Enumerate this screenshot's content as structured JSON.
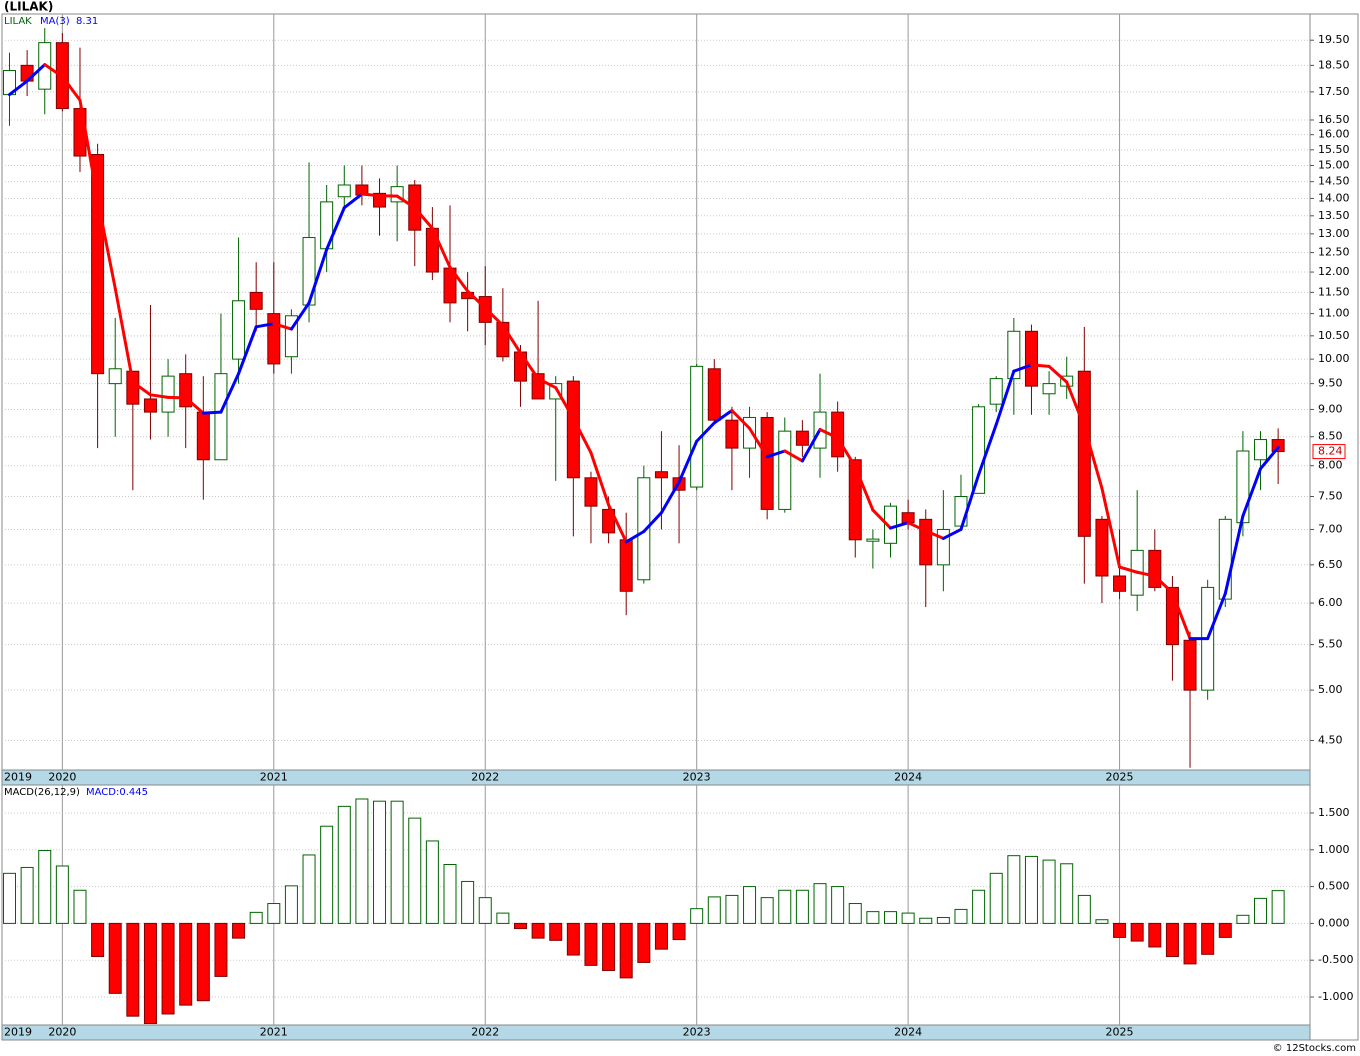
{
  "footer": "© 12Stocks.com",
  "chart_data": [
    {
      "type": "candlestick",
      "title": "(LILAK)",
      "name": "LILAK",
      "categories": [
        "2019",
        null,
        null,
        "2020",
        null,
        null,
        null,
        null,
        null,
        null,
        null,
        null,
        null,
        null,
        null,
        "2021",
        null,
        null,
        null,
        null,
        null,
        null,
        null,
        null,
        null,
        null,
        null,
        "2022",
        null,
        null,
        null,
        null,
        null,
        null,
        null,
        null,
        null,
        null,
        null,
        "2023",
        null,
        null,
        null,
        null,
        null,
        null,
        null,
        null,
        null,
        null,
        null,
        "2024",
        null,
        null,
        null,
        null,
        null,
        null,
        null,
        null,
        null,
        null,
        null,
        "2025",
        null,
        null,
        null,
        null,
        null,
        null,
        null,
        null,
        null
      ],
      "open": [
        17.4,
        18.5,
        17.6,
        19.4,
        16.9,
        15.35,
        9.5,
        9.75,
        9.2,
        8.95,
        9.7,
        8.95,
        8.1,
        10.0,
        11.5,
        11.0,
        10.05,
        11.2,
        12.6,
        14.05,
        14.4,
        14.15,
        13.9,
        14.4,
        13.15,
        12.1,
        11.5,
        11.4,
        10.8,
        10.15,
        9.7,
        9.2,
        9.55,
        7.8,
        7.3,
        6.85,
        6.3,
        7.9,
        7.8,
        7.65,
        9.8,
        8.8,
        8.3,
        8.85,
        7.3,
        8.6,
        8.3,
        8.95,
        8.1,
        6.83,
        6.8,
        7.25,
        7.15,
        6.5,
        7.05,
        7.55,
        9.1,
        9.6,
        10.6,
        9.3,
        9.45,
        9.75,
        7.15,
        6.35,
        6.1,
        6.7,
        6.2,
        5.55,
        5.0,
        6.05,
        7.1,
        8.1,
        8.45
      ],
      "high": [
        19.0,
        19.1,
        20.0,
        19.8,
        19.2,
        15.7,
        10.9,
        9.75,
        11.2,
        10.0,
        10.1,
        9.65,
        11.0,
        12.9,
        12.25,
        12.25,
        11.1,
        15.1,
        14.4,
        15.0,
        15.0,
        14.6,
        15.0,
        14.55,
        13.75,
        13.8,
        12.0,
        12.15,
        11.6,
        10.3,
        11.3,
        9.65,
        9.65,
        7.9,
        7.5,
        7.25,
        8.0,
        8.6,
        8.35,
        9.9,
        10.0,
        9.05,
        9.05,
        8.95,
        8.85,
        8.8,
        9.7,
        9.15,
        8.15,
        7.0,
        7.4,
        7.45,
        7.3,
        7.6,
        7.85,
        9.1,
        9.65,
        10.9,
        10.75,
        9.75,
        10.05,
        10.7,
        7.2,
        7.0,
        7.6,
        7.0,
        6.35,
        5.65,
        6.3,
        7.2,
        8.6,
        8.6,
        8.65
      ],
      "low": [
        16.3,
        17.35,
        16.7,
        16.8,
        14.8,
        8.3,
        8.5,
        7.6,
        8.45,
        8.5,
        8.3,
        7.45,
        8.1,
        9.5,
        10.6,
        9.7,
        9.7,
        10.8,
        12.0,
        13.75,
        13.8,
        12.95,
        12.8,
        12.15,
        11.8,
        10.8,
        10.6,
        10.3,
        9.95,
        9.05,
        9.2,
        7.75,
        6.9,
        6.8,
        6.8,
        5.85,
        6.25,
        7.0,
        6.8,
        7.6,
        8.75,
        7.6,
        7.8,
        7.15,
        7.25,
        8.15,
        7.8,
        7.9,
        6.6,
        6.45,
        6.6,
        7.0,
        5.95,
        6.15,
        7.0,
        7.55,
        8.95,
        8.9,
        8.9,
        8.9,
        9.2,
        6.25,
        6.0,
        6.05,
        5.9,
        6.15,
        5.1,
        4.25,
        4.9,
        5.95,
        6.9,
        7.6,
        7.7
      ],
      "close": [
        18.3,
        17.9,
        19.4,
        16.9,
        15.3,
        9.7,
        9.8,
        9.1,
        8.95,
        9.65,
        9.05,
        8.1,
        9.7,
        11.3,
        11.1,
        9.9,
        10.95,
        12.9,
        13.9,
        14.4,
        14.1,
        13.75,
        14.35,
        13.1,
        12.0,
        11.25,
        11.35,
        10.8,
        10.05,
        9.55,
        9.2,
        9.5,
        7.8,
        7.35,
        6.95,
        6.15,
        7.8,
        7.8,
        7.6,
        9.85,
        8.8,
        8.3,
        8.85,
        7.3,
        8.6,
        8.35,
        8.95,
        8.15,
        6.85,
        6.86,
        7.35,
        7.1,
        6.5,
        7.0,
        7.5,
        9.05,
        9.6,
        10.6,
        9.45,
        9.5,
        9.65,
        6.9,
        6.35,
        6.15,
        6.7,
        6.2,
        5.5,
        5.0,
        6.2,
        7.15,
        8.25,
        8.45,
        8.24
      ],
      "last_value_label": "8.24",
      "up_color": "#006400",
      "down_color": "#ff0000",
      "down_edge_color": "#800000",
      "overlay": {
        "name": "MA(3)",
        "value_label": "8.31",
        "up_color": "#0000ff",
        "down_color": "#ff0000",
        "values": [
          17.4,
          17.9,
          18.53,
          18.07,
          17.2,
          13.97,
          11.6,
          9.53,
          9.28,
          9.23,
          9.22,
          8.93,
          8.95,
          9.7,
          10.7,
          10.77,
          10.65,
          11.25,
          12.58,
          13.73,
          14.13,
          14.08,
          14.07,
          13.73,
          13.15,
          12.12,
          11.53,
          11.13,
          10.73,
          10.13,
          9.6,
          9.42,
          8.83,
          8.22,
          7.37,
          6.82,
          6.97,
          7.25,
          7.73,
          8.42,
          8.75,
          8.98,
          8.65,
          8.15,
          8.25,
          8.08,
          8.63,
          8.48,
          7.98,
          7.29,
          7.02,
          7.1,
          6.98,
          6.87,
          7.0,
          7.85,
          8.72,
          9.75,
          9.88,
          9.85,
          9.53,
          8.68,
          7.63,
          6.47,
          6.4,
          6.35,
          6.13,
          5.57,
          5.57,
          6.12,
          7.2,
          7.95,
          8.31
        ]
      },
      "log_scale": true,
      "grid": true,
      "ylim": [
        4.23,
        20.6
      ],
      "yticks": [
        {
          "value": 4.5,
          "label": "4.50"
        },
        {
          "value": 5,
          "label": "5.00"
        },
        {
          "value": 5.5,
          "label": "5.50"
        },
        {
          "value": 6,
          "label": "6.00"
        },
        {
          "value": 6.5,
          "label": "6.50"
        },
        {
          "value": 7,
          "label": "7.00"
        },
        {
          "value": 7.5,
          "label": "7.50"
        },
        {
          "value": 8,
          "label": "8.00"
        },
        {
          "value": 8.5,
          "label": "8.50"
        },
        {
          "value": 9,
          "label": "9.00"
        },
        {
          "value": 9.5,
          "label": "9.50"
        },
        {
          "value": 10,
          "label": "10.00"
        },
        {
          "value": 10.5,
          "label": "10.50"
        },
        {
          "value": 11,
          "label": "11.00"
        },
        {
          "value": 11.5,
          "label": "11.50"
        },
        {
          "value": 12,
          "label": "12.00"
        },
        {
          "value": 12.5,
          "label": "12.50"
        },
        {
          "value": 13,
          "label": "13.00"
        },
        {
          "value": 13.5,
          "label": "13.50"
        },
        {
          "value": 14,
          "label": "14.00"
        },
        {
          "value": 14.5,
          "label": "14.50"
        },
        {
          "value": 15,
          "label": "15.00"
        },
        {
          "value": 15.5,
          "label": "15.50"
        },
        {
          "value": 16,
          "label": "16.00"
        },
        {
          "value": 16.5,
          "label": "16.50"
        },
        {
          "value": 17.5,
          "label": "17.50"
        },
        {
          "value": 18.5,
          "label": "18.50"
        },
        {
          "value": 19.5,
          "label": "19.50"
        }
      ]
    },
    {
      "type": "bar",
      "title": "MACD(26,12,9)",
      "value_label": "MACD:0.445",
      "categories": [
        "2019",
        null,
        null,
        "2020",
        null,
        null,
        null,
        null,
        null,
        null,
        null,
        null,
        null,
        null,
        null,
        "2021",
        null,
        null,
        null,
        null,
        null,
        null,
        null,
        null,
        null,
        null,
        null,
        "2022",
        null,
        null,
        null,
        null,
        null,
        null,
        null,
        null,
        null,
        null,
        null,
        "2023",
        null,
        null,
        null,
        null,
        null,
        null,
        null,
        null,
        null,
        null,
        null,
        "2024",
        null,
        null,
        null,
        null,
        null,
        null,
        null,
        null,
        null,
        null,
        null,
        "2025",
        null,
        null,
        null,
        null,
        null,
        null,
        null,
        null,
        null
      ],
      "values": [
        0.68,
        0.76,
        0.99,
        0.78,
        0.45,
        -0.45,
        -0.95,
        -1.26,
        -1.36,
        -1.23,
        -1.11,
        -1.05,
        -0.72,
        -0.2,
        0.15,
        0.27,
        0.51,
        0.93,
        1.32,
        1.59,
        1.69,
        1.66,
        1.66,
        1.43,
        1.12,
        0.8,
        0.57,
        0.35,
        0.14,
        -0.07,
        -0.2,
        -0.23,
        -0.43,
        -0.57,
        -0.64,
        -0.74,
        -0.53,
        -0.35,
        -0.22,
        0.2,
        0.36,
        0.38,
        0.5,
        0.35,
        0.45,
        0.45,
        0.54,
        0.5,
        0.27,
        0.16,
        0.16,
        0.14,
        0.07,
        0.08,
        0.19,
        0.45,
        0.68,
        0.92,
        0.91,
        0.86,
        0.81,
        0.38,
        0.05,
        -0.19,
        -0.24,
        -0.32,
        -0.45,
        -0.55,
        -0.42,
        -0.19,
        0.11,
        0.34,
        0.445
      ],
      "up_color": "#006400",
      "down_color": "#ff0000",
      "down_edge_color": "#800000",
      "ylim": [
        -1.38,
        1.88
      ],
      "yticks": [
        {
          "value": -1,
          "label": "-1.000"
        },
        {
          "value": -0.5,
          "label": "-0.500"
        },
        {
          "value": 0,
          "label": "0.000"
        },
        {
          "value": 0.5,
          "label": "0.500"
        },
        {
          "value": 1,
          "label": "1.000"
        },
        {
          "value": 1.5,
          "label": "1.500"
        }
      ]
    }
  ]
}
